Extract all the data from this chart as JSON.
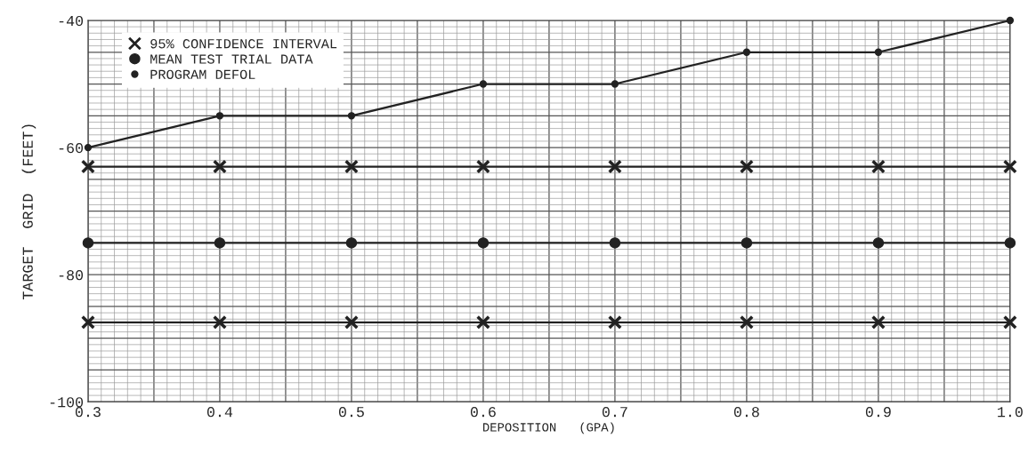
{
  "chart_data": {
    "type": "line",
    "xlabel": "DEPOSITION   (GPA)",
    "ylabel": "TARGET  GRID  (FEET)",
    "x": [
      0.3,
      0.4,
      0.5,
      0.6,
      0.7,
      0.8,
      0.9,
      1.0
    ],
    "series": [
      {
        "name": "95% CONFIDENCE INTERVAL",
        "color": "#222222",
        "marker": "cross",
        "values": [
          -63,
          -63,
          -63,
          -63,
          -63,
          -63,
          -63,
          -63
        ]
      },
      {
        "name": "MEAN TEST TRIAL DATA",
        "color": "#222222",
        "marker": "circle",
        "values": [
          -75,
          -75,
          -75,
          -75,
          -75,
          -75,
          -75,
          -75
        ]
      },
      {
        "color": "#222222",
        "marker": "cross",
        "values": [
          -87.5,
          -87.5,
          -87.5,
          -87.5,
          -87.5,
          -87.5,
          -87.5,
          -87.5
        ]
      },
      {
        "name": "PROGRAM DEFOL",
        "color": "#222222",
        "marker": "circle",
        "values": [
          -60,
          -55,
          -55,
          -50,
          -50,
          -45,
          -45,
          -40
        ]
      }
    ],
    "xlim": [
      0.3,
      1.0
    ],
    "xticks": [
      0.3,
      0.4,
      0.5,
      0.6,
      0.7,
      0.8,
      0.9,
      {
        "value": 1.0,
        "label": "1.0"
      }
    ],
    "ylim": [
      -100,
      -40
    ],
    "yticks": [
      -100,
      -80,
      -60,
      -40
    ],
    "grid": true,
    "legend": "top left",
    "line_style": "solid"
  }
}
